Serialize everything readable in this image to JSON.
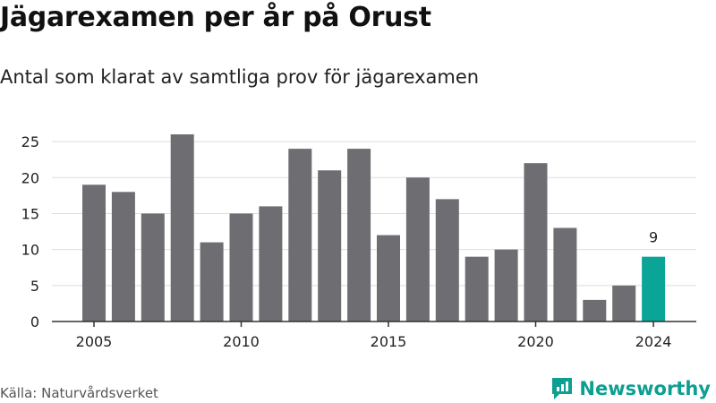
{
  "header": {
    "title": "Jägarexamen per år på Orust",
    "subtitle": "Antal som klarat av samtliga prov för jägarexamen"
  },
  "footer": {
    "source": "Källa: Naturvårdsverket",
    "brand": "Newsworthy",
    "brand_icon": "newsworthy-logo-icon"
  },
  "colors": {
    "bar": "#6e6d72",
    "highlight": "#0aa597",
    "brand": "#0d9f91",
    "grid": "#dddddd"
  },
  "chart_data": {
    "type": "bar",
    "title": "Jägarexamen per år på Orust",
    "subtitle": "Antal som klarat av samtliga prov för jägarexamen",
    "xlabel": "",
    "ylabel": "",
    "categories": [
      2005,
      2006,
      2007,
      2008,
      2009,
      2010,
      2011,
      2012,
      2013,
      2014,
      2015,
      2016,
      2017,
      2018,
      2019,
      2020,
      2021,
      2022,
      2023,
      2024
    ],
    "values": [
      19,
      18,
      15,
      26,
      11,
      15,
      16,
      24,
      21,
      24,
      12,
      20,
      17,
      9,
      10,
      22,
      13,
      3,
      5,
      9
    ],
    "highlight_category": 2024,
    "highlight_label": "9",
    "x_ticks": [
      "2005",
      "2010",
      "2015",
      "2020",
      "2024"
    ],
    "y_ticks": [
      "0",
      "5",
      "10",
      "15",
      "20",
      "25"
    ],
    "ylim": [
      0,
      27
    ],
    "grid": true,
    "legend": "none"
  }
}
